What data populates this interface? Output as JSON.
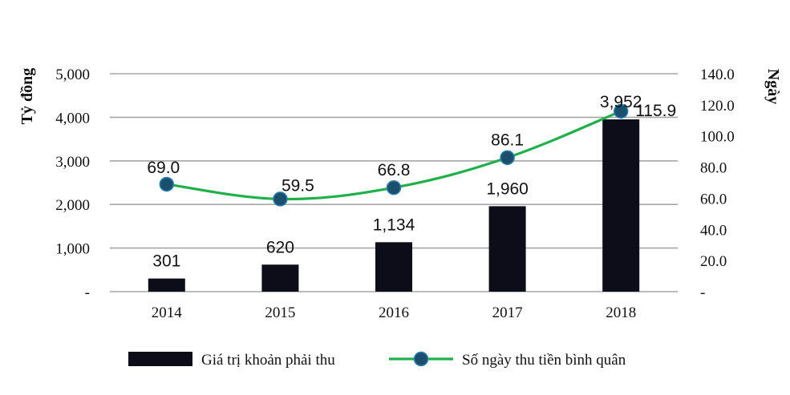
{
  "chart_data": {
    "type": "bar",
    "categories": [
      "2014",
      "2015",
      "2016",
      "2017",
      "2018"
    ],
    "series": [
      {
        "name": "Giá trị khoản phải thu",
        "type": "bar",
        "axis": "left",
        "values": [
          301,
          620,
          1134,
          1960,
          3952
        ],
        "labels": [
          "301",
          "620",
          "1,134",
          "1,960",
          "3,952"
        ],
        "color": "#0d0d1a"
      },
      {
        "name": "Số ngày thu tiền bình quân",
        "type": "line",
        "axis": "right",
        "values": [
          69.0,
          59.5,
          66.8,
          86.1,
          115.9
        ],
        "labels": [
          "69.0",
          "59.5",
          "66.8",
          "86.1",
          "115.9"
        ],
        "color": "#1fb04a",
        "marker_color": "#1b4f6e"
      }
    ],
    "ylabel": "Tỷ đồng",
    "ylabel_right": "Ngày",
    "ylim": [
      0,
      5000
    ],
    "ylim_right": [
      0,
      140
    ],
    "yticks": [
      0,
      1000,
      2000,
      3000,
      4000,
      5000
    ],
    "ytick_labels": [
      "-",
      "1,000",
      "2,000",
      "3,000",
      "4,000",
      "5,000"
    ],
    "yticks_right": [
      0,
      20,
      40,
      60,
      80,
      100,
      120,
      140
    ],
    "ytick_labels_right": [
      "-",
      "20.0",
      "40.0",
      "60.0",
      "80.0",
      "100.0",
      "120.0",
      "140.0"
    ],
    "grid": true,
    "legend": "bottom"
  }
}
